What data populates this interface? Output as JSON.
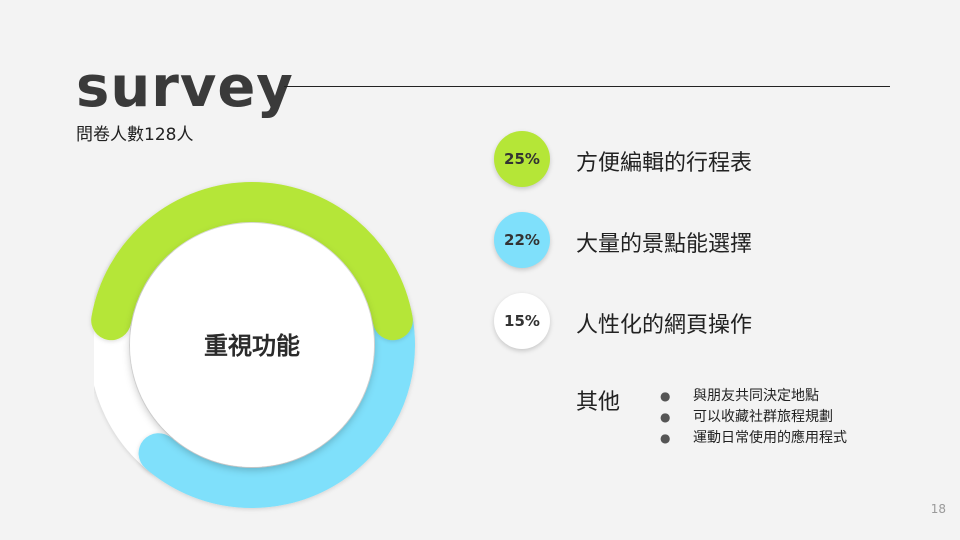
{
  "slide": {
    "title": "survey",
    "subtitle": "問卷人數128人",
    "page_number": "18"
  },
  "chart_data": {
    "type": "pie",
    "center_label": "重視功能",
    "series": [
      {
        "name": "方便編輯的行程表",
        "value": 25,
        "label": "25%",
        "color": "#b5e637"
      },
      {
        "name": "大量的景點能選擇",
        "value": 22,
        "label": "22%",
        "color": "#7fe0fb"
      },
      {
        "name": "人性化的網頁操作",
        "value": 15,
        "label": "15%",
        "color": "#ffffff"
      }
    ],
    "other": {
      "label": "其他",
      "items": [
        "與朋友共同決定地點",
        "可以收藏社群旅程規劃",
        "運動日常使用的應用程式"
      ]
    }
  }
}
